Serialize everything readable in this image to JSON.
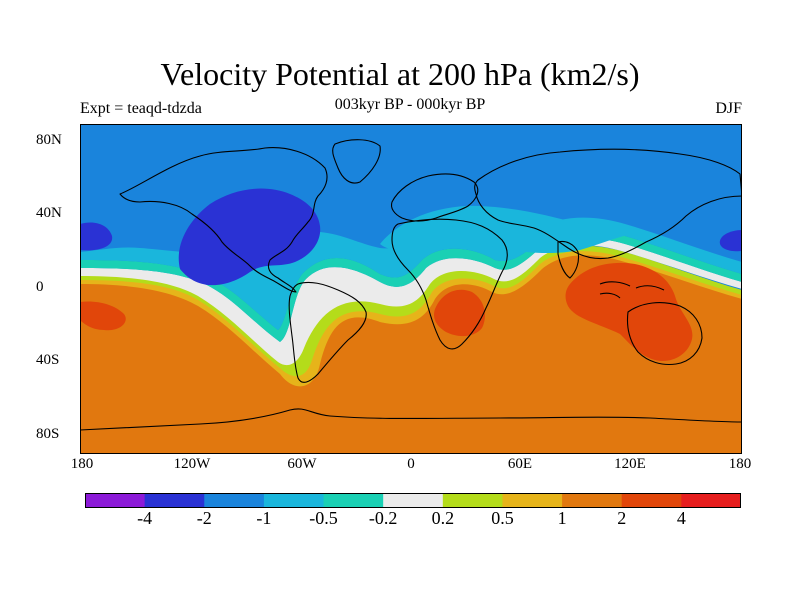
{
  "title": "Velocity Potential at 200 hPa (km2/s)",
  "subtitle": {
    "left": "Expt = teaqd-tdzda",
    "center": "003kyr BP - 000kyr BP",
    "right": "DJF"
  },
  "axes": {
    "lat_labels": [
      "80N",
      "40N",
      "0",
      "40S",
      "80S"
    ],
    "lon_labels": [
      "180",
      "120W",
      "60W",
      "0",
      "60E",
      "120E",
      "180"
    ]
  },
  "colorbar": {
    "colors": [
      "#8c1ad8",
      "#2a32d4",
      "#1a84dc",
      "#1ab6dc",
      "#1ad0b4",
      "#ebebeb",
      "#b4dc1a",
      "#e6b41a",
      "#e1780f",
      "#e1460a",
      "#e61e1e"
    ],
    "labels": [
      "-4",
      "-2",
      "-1",
      "-0.5",
      "-0.2",
      "0.2",
      "0.5",
      "1",
      "2",
      "4"
    ]
  },
  "map_regions": {
    "background_color": "#1a84dc",
    "south_color": "#e1780f",
    "dark_blue_color": "#2a32d4",
    "light_blue_color": "#1ab6dc",
    "teal_color": "#1ad0b4",
    "white_band_color": "#ebebeb",
    "green_color": "#b4dc1a",
    "yellow_color": "#e6b41a",
    "red_orange_color": "#e1460a",
    "coastline_color": "#000000"
  }
}
